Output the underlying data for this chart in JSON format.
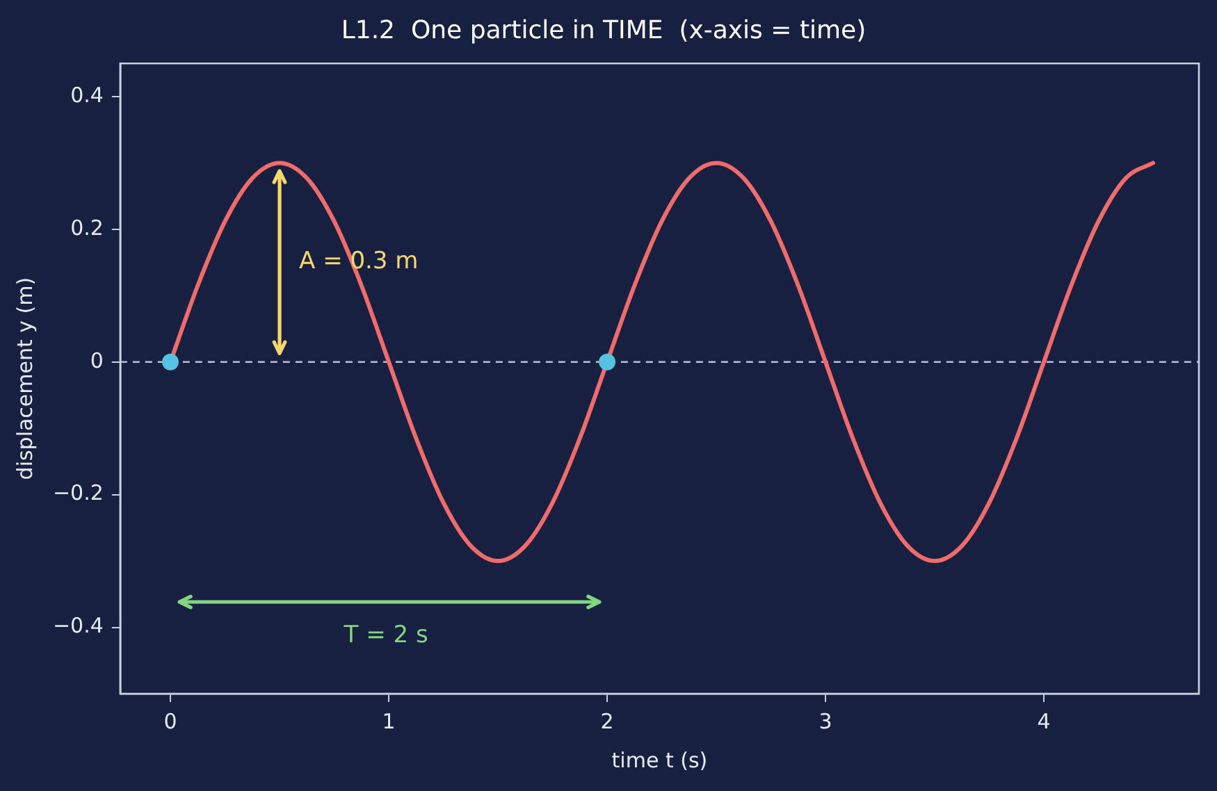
{
  "chart_data": {
    "type": "line",
    "title": "L1.2  One particle in TIME  (x-axis = time)",
    "xlabel": "time t (s)",
    "ylabel": "displacement y (m)",
    "x": [
      0,
      0.125,
      0.25,
      0.375,
      0.5,
      0.625,
      0.75,
      0.875,
      1,
      1.125,
      1.25,
      1.375,
      1.5,
      1.625,
      1.75,
      1.875,
      2,
      2.125,
      2.25,
      2.375,
      2.5,
      2.625,
      2.75,
      2.875,
      3,
      3.125,
      3.25,
      3.375,
      3.5,
      3.625,
      3.75,
      3.875,
      4,
      4.125,
      4.25,
      4.375,
      4.5
    ],
    "series": [
      {
        "color": "#f26b6b",
        "marker": "none",
        "line_style": "solid",
        "values": [
          0,
          0.115,
          0.212,
          0.277,
          0.3,
          0.277,
          0.212,
          0.115,
          0,
          -0.115,
          -0.212,
          -0.277,
          -0.3,
          -0.277,
          -0.212,
          -0.115,
          0,
          0.115,
          0.212,
          0.277,
          0.3,
          0.277,
          0.212,
          0.115,
          0,
          -0.115,
          -0.212,
          -0.277,
          -0.3,
          -0.277,
          -0.212,
          -0.115,
          0,
          0.115,
          0.212,
          0.277,
          0.3
        ]
      },
      {
        "type": "scatter",
        "color": "#56c1e0",
        "marker": "circle",
        "x": [
          0,
          2
        ],
        "values": [
          0,
          0
        ]
      }
    ],
    "xlim": [
      -0.23,
      4.71
    ],
    "ylim": [
      -0.5,
      0.45
    ],
    "xticks": [
      0,
      1,
      2,
      3,
      4
    ],
    "yticks": [
      {
        "value": -0.4,
        "label": "−0.4"
      },
      {
        "value": -0.2,
        "label": "−0.2"
      },
      0.0,
      0.2,
      0.4
    ],
    "ref_lines": [
      {
        "axis": "y",
        "value": 0,
        "color": "#b8c0d8",
        "line_style": "dashed"
      }
    ],
    "annotations": [
      "A = 0.3 m",
      "T = 2 s"
    ],
    "grid": false,
    "legend": false
  }
}
